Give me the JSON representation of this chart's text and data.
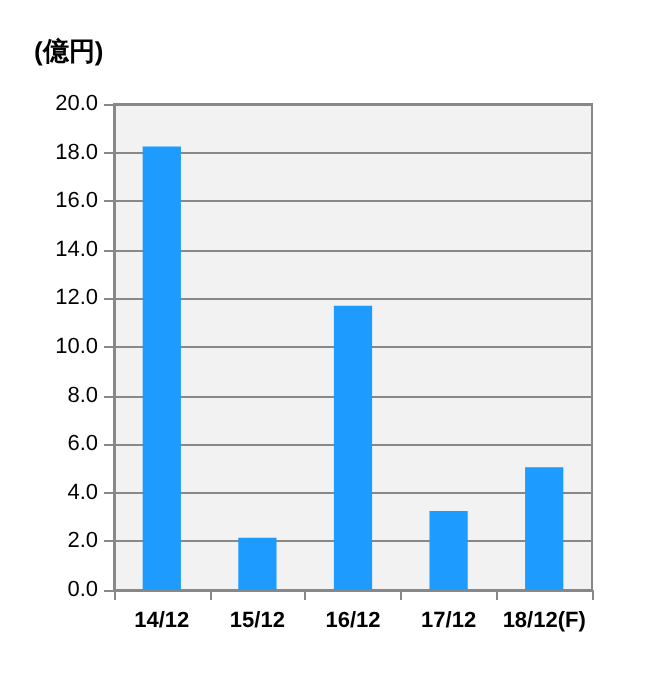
{
  "chart_data": {
    "type": "bar",
    "ylabel": "(億円)",
    "categories": [
      "14/12",
      "15/12",
      "16/12",
      "17/12",
      "18/12(F)"
    ],
    "values": [
      18.25,
      2.15,
      11.7,
      3.25,
      5.05
    ],
    "color": "#1e9bff",
    "ylim": [
      0,
      20
    ],
    "yticks": [
      {
        "value": 0,
        "label": "0.0"
      },
      {
        "value": 2,
        "label": "2.0"
      },
      {
        "value": 4,
        "label": "4.0"
      },
      {
        "value": 6,
        "label": "6.0"
      },
      {
        "value": 8,
        "label": "8.0"
      },
      {
        "value": 10,
        "label": "10.0"
      },
      {
        "value": 12,
        "label": "12.0"
      },
      {
        "value": 14,
        "label": "14.0"
      },
      {
        "value": 16,
        "label": "16.0"
      },
      {
        "value": 18,
        "label": "18.0"
      },
      {
        "value": 20,
        "label": "20.0"
      }
    ],
    "grid": "y"
  }
}
